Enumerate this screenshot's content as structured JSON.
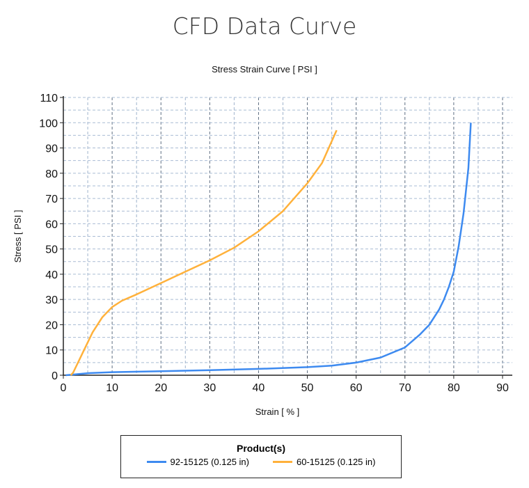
{
  "chart_data": {
    "type": "line",
    "title": "CFD Data Curve",
    "subtitle": "Stress Strain Curve [ PSI ]",
    "xlabel": "Strain [ % ]",
    "ylabel": "Stress [ PSI ]",
    "xlim": [
      0,
      92
    ],
    "ylim": [
      0,
      110
    ],
    "xticks": [
      0,
      10,
      20,
      30,
      40,
      50,
      60,
      70,
      80,
      90
    ],
    "yticks": [
      0,
      10,
      20,
      30,
      40,
      50,
      60,
      70,
      80,
      90,
      100,
      110
    ],
    "grid": true,
    "legend_title": "Product(s)",
    "legend_position": "bottom",
    "series": [
      {
        "name": "92-15125 (0.125 in)",
        "color": "#3d8af0",
        "x": [
          0.5,
          5,
          10,
          20,
          30,
          40,
          50,
          55,
          60,
          65,
          70,
          73,
          75,
          77,
          78,
          79,
          80,
          81,
          82,
          83,
          83.5
        ],
        "y": [
          0,
          0.8,
          1.2,
          1.6,
          2,
          2.5,
          3.2,
          3.8,
          5,
          7,
          11,
          16,
          20,
          26,
          30,
          35,
          41,
          51,
          64,
          82,
          100
        ]
      },
      {
        "name": "60-15125 (0.125 in)",
        "color": "#ffb13b",
        "x": [
          1.5,
          2,
          3,
          4,
          5,
          6,
          7,
          8,
          9,
          10,
          12,
          15,
          20,
          25,
          30,
          35,
          40,
          45,
          50,
          53,
          56
        ],
        "y": [
          0,
          1,
          5,
          9,
          13,
          17,
          20,
          23,
          25,
          27,
          29.5,
          32,
          36.5,
          41,
          45.5,
          50.5,
          57,
          65,
          76,
          84,
          97
        ]
      }
    ]
  }
}
